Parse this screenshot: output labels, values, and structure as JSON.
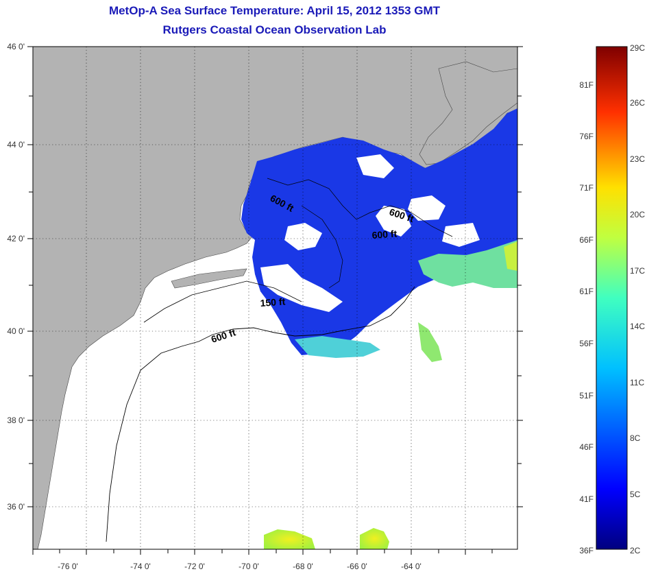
{
  "header": {
    "title": "MetOp-A Sea Surface Temperature:  April 15, 2012 1353 GMT",
    "subtitle": "Rutgers Coastal Ocean Observation Lab"
  },
  "map": {
    "lat_labels": [
      "46 0'",
      "44 0'",
      "42 0'",
      "40 0'",
      "38 0'",
      "36 0'"
    ],
    "lon_labels": [
      "-76 0'",
      "-74 0'",
      "-72 0'",
      "-70 0'",
      "-68 0'",
      "-66 0'",
      "-64 0'"
    ],
    "depth_labels": [
      "600 ft",
      "600 ft",
      "600 ft",
      "150 ft",
      "600 ft"
    ],
    "colors": {
      "land": "#b3b3b3",
      "ocean_nodata": "#ffffff",
      "sst_cold": "#1030e0",
      "sst_warm": "#e8f020"
    }
  },
  "colorbar": {
    "fahrenheit": [
      "81F",
      "76F",
      "71F",
      "66F",
      "61F",
      "56F",
      "51F",
      "46F",
      "41F",
      "36F"
    ],
    "celsius": [
      "29C",
      "26C",
      "23C",
      "20C",
      "17C",
      "14C",
      "11C",
      "8C",
      "5C",
      "2C"
    ]
  }
}
